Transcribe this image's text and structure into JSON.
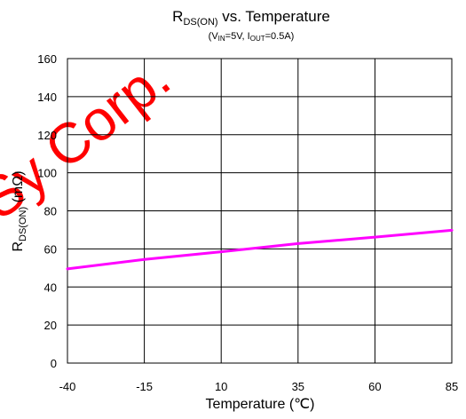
{
  "chart_data": {
    "type": "line",
    "title": {
      "main": "R",
      "sub": "DS(ON)",
      "rest": " vs. Temperature"
    },
    "subtitle": {
      "p1": "(V",
      "s1": "IN",
      "p2": "=5V, I",
      "s2": "OUT",
      "p3": "=0.5A)"
    },
    "xlabel": "Temperature (℃)",
    "ylabel": {
      "main": "R",
      "sub": "DS(ON)",
      "rest": " (mΩ)"
    },
    "xlim": [
      -40,
      85
    ],
    "ylim": [
      0,
      160
    ],
    "x_ticks": [
      -40,
      -15,
      10,
      35,
      60,
      85
    ],
    "y_ticks": [
      0,
      20,
      40,
      60,
      80,
      100,
      120,
      140,
      160
    ],
    "grid": true,
    "series": [
      {
        "color": "#ff00ff",
        "x": [
          -40,
          -15,
          10,
          35,
          60,
          85
        ],
        "y": [
          49.5,
          54.5,
          58.5,
          62.8,
          66.2,
          69.8
        ]
      }
    ],
    "watermark": "Sy Corp."
  }
}
